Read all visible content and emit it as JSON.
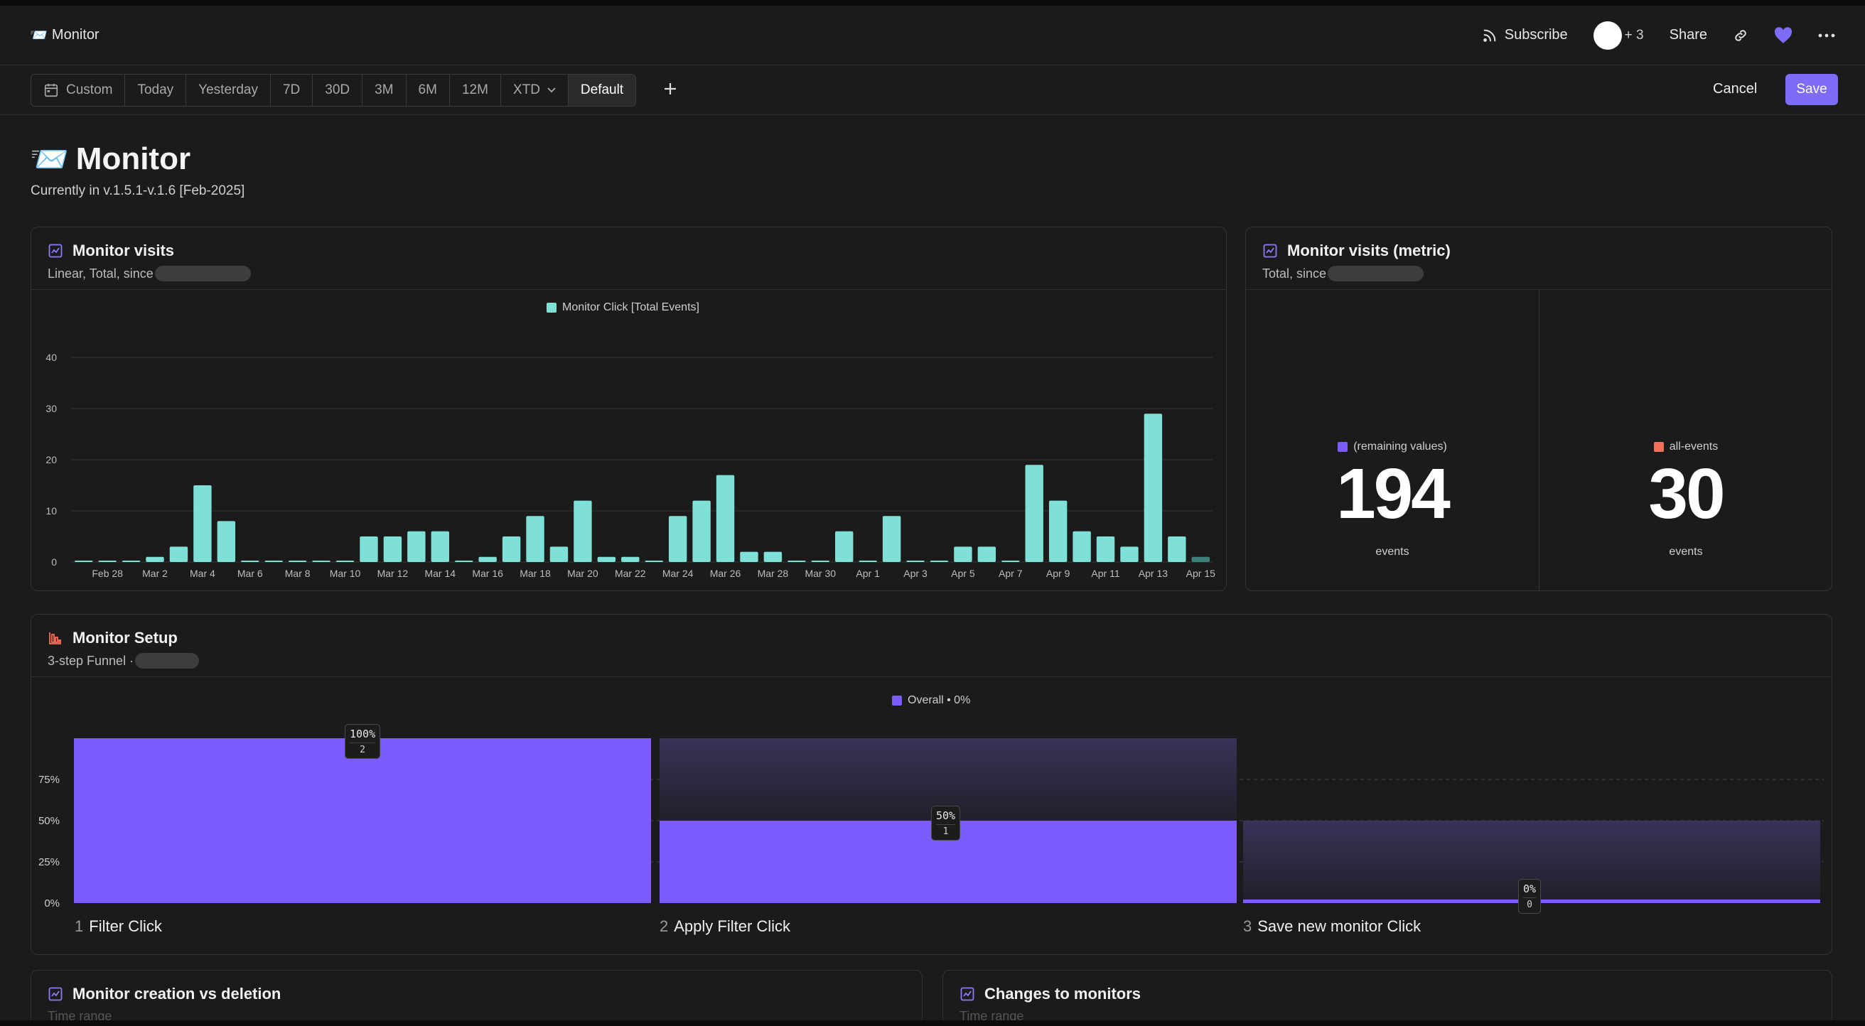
{
  "topbar": {
    "emoji": "📨",
    "breadcrumb": "Monitor",
    "subscribe": "Subscribe",
    "avatars_extra": "+ 3",
    "share": "Share"
  },
  "filters": {
    "ranges": [
      "Custom",
      "Today",
      "Yesterday",
      "7D",
      "30D",
      "3M",
      "6M",
      "12M",
      "XTD",
      "Default"
    ],
    "active": "Default",
    "cancel": "Cancel",
    "save": "Save",
    "accent": "#7c6cf6"
  },
  "header": {
    "emoji": "📨",
    "title": "Monitor",
    "subtitle": "Currently in v.1.5.1-v.1.6 [Feb-2025]"
  },
  "visits": {
    "title": "Monitor visits",
    "subtitle": "Linear, Total, since",
    "legend": "Monitor Click [Total Events]"
  },
  "metric_card": {
    "title": "Monitor visits (metric)",
    "subtitle": "Total, since",
    "metrics": [
      {
        "label": "(remaining values)",
        "value": "194",
        "unit": "events",
        "color": "#7c5cff"
      },
      {
        "label": "all-events",
        "value": "30",
        "unit": "events",
        "color": "#f2705a"
      }
    ]
  },
  "funnel_card": {
    "title": "Monitor Setup",
    "subtitle": "3-step Funnel ·",
    "legend": "Overall • 0%"
  },
  "bottom_cards": {
    "left_title": "Monitor creation vs deletion",
    "left_sub": "Time range",
    "right_title": "Changes to monitors",
    "right_sub": "Time range"
  },
  "chart_data": [
    {
      "type": "bar",
      "title": "Monitor visits",
      "series": [
        {
          "name": "Monitor Click [Total Events]",
          "color": "#7ee0d6",
          "values": [
            0,
            0,
            0,
            1,
            3,
            15,
            8,
            0,
            0,
            0,
            0,
            0,
            5,
            5,
            6,
            6,
            0,
            1,
            5,
            9,
            3,
            12,
            1,
            1,
            0,
            9,
            12,
            17,
            2,
            2,
            0,
            0,
            6,
            0,
            9,
            0,
            0,
            3,
            3,
            0,
            19,
            12,
            6,
            5,
            3,
            29,
            5,
            1
          ]
        }
      ],
      "categories": [
        "Feb 27",
        "Feb 28",
        "Mar 1",
        "Mar 2",
        "Mar 3",
        "Mar 4",
        "Mar 5",
        "Mar 6",
        "Mar 7",
        "Mar 8",
        "Mar 9",
        "Mar 10",
        "Mar 11",
        "Mar 12",
        "Mar 13",
        "Mar 14",
        "Mar 15",
        "Mar 16",
        "Mar 17",
        "Mar 18",
        "Mar 19",
        "Mar 20",
        "Mar 21",
        "Mar 22",
        "Mar 23",
        "Mar 24",
        "Mar 25",
        "Mar 26",
        "Mar 27",
        "Mar 28",
        "Mar 29",
        "Mar 30",
        "Mar 31",
        "Apr 1",
        "Apr 2",
        "Apr 3",
        "Apr 4",
        "Apr 5",
        "Apr 6",
        "Apr 7",
        "Apr 8",
        "Apr 9",
        "Apr 10",
        "Apr 11",
        "Apr 12",
        "Apr 13",
        "Apr 14",
        "Apr 15"
      ],
      "x_tick_labels": [
        "Feb 28",
        "Mar 2",
        "Mar 4",
        "Mar 6",
        "Mar 8",
        "Mar 10",
        "Mar 12",
        "Mar 14",
        "Mar 16",
        "Mar 18",
        "Mar 20",
        "Mar 22",
        "Mar 24",
        "Mar 26",
        "Mar 28",
        "Mar 30",
        "Apr 1",
        "Apr 3",
        "Apr 5",
        "Apr 7",
        "Apr 9",
        "Apr 11",
        "Apr 13",
        "Apr 15"
      ],
      "y_ticks": [
        0,
        10,
        20,
        30,
        40
      ],
      "ylim": [
        0,
        40
      ],
      "grid": true,
      "legend_position": "top-center"
    },
    {
      "type": "bar",
      "title": "Monitor Setup",
      "categories": [
        "Filter Click",
        "Apply Filter Click",
        "Save new monitor Click"
      ],
      "step_numbers": [
        "1",
        "2",
        "3"
      ],
      "series": [
        {
          "name": "Overall • 0%",
          "color": "#7c5cff",
          "values": [
            100,
            50,
            0
          ],
          "counts": [
            "2",
            "1",
            "0"
          ],
          "labels": [
            "100%",
            "50%",
            "0%"
          ]
        }
      ],
      "y_ticks": [
        "0%",
        "25%",
        "50%",
        "75%"
      ],
      "ylim": [
        0,
        100
      ],
      "legend_position": "top-center"
    }
  ]
}
